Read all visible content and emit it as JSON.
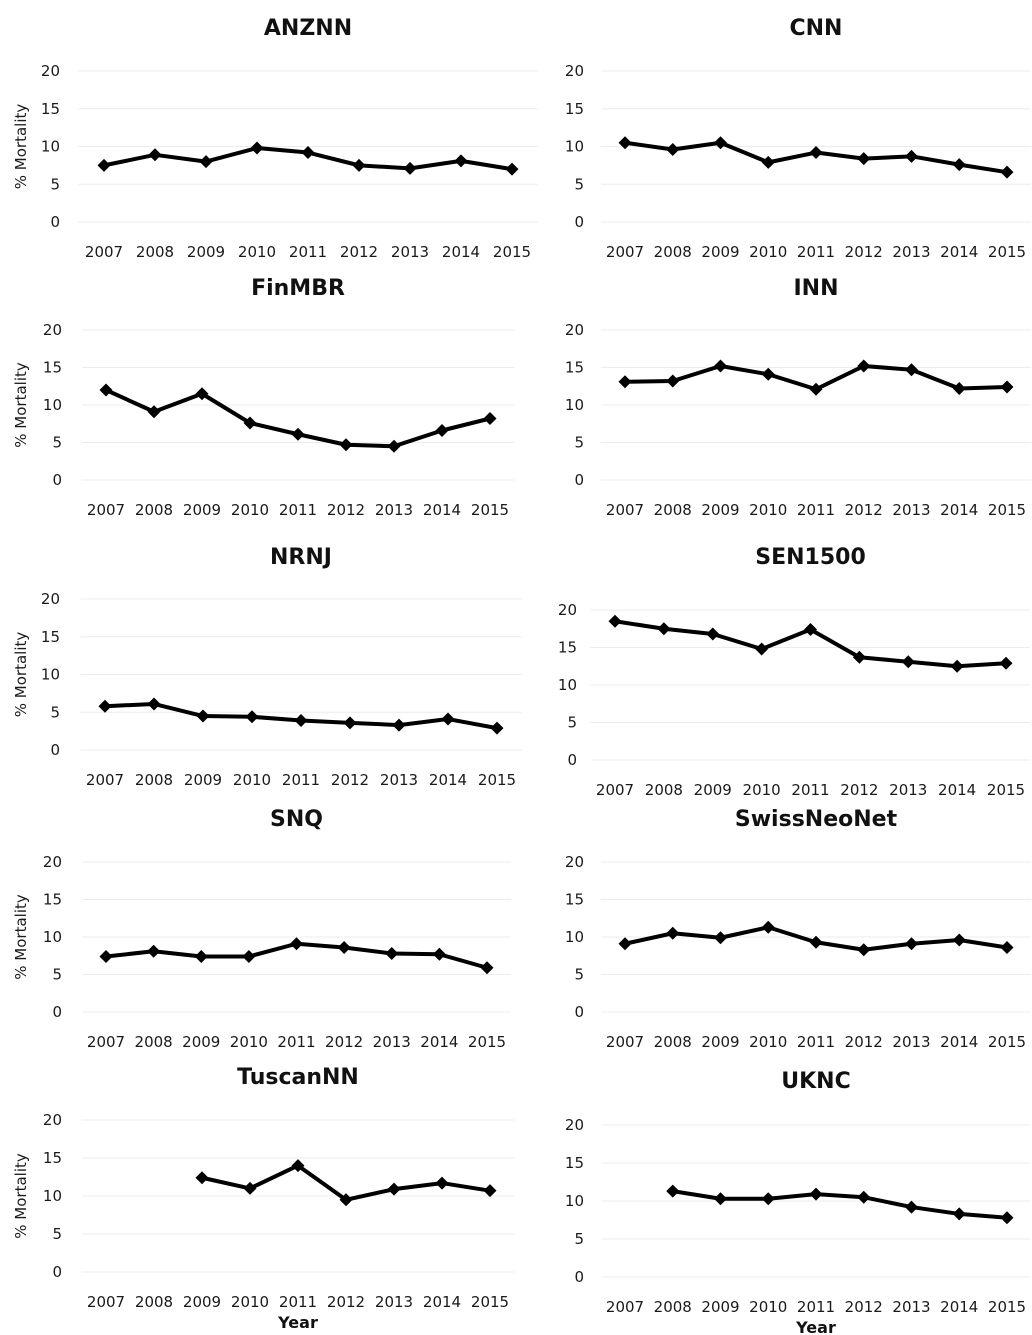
{
  "chart_data": [
    {
      "type": "line",
      "title": "ANZNN",
      "ylabel": "% Mortality",
      "xlabel": "",
      "ylim": [
        0,
        20
      ],
      "yticks": [
        0,
        5,
        10,
        15,
        20
      ],
      "categories": [
        "2007",
        "2008",
        "2009",
        "2010",
        "2011",
        "2012",
        "2013",
        "2014",
        "2015"
      ],
      "values": [
        7.5,
        8.9,
        8.0,
        9.8,
        9.2,
        7.5,
        7.1,
        8.1,
        7.0
      ]
    },
    {
      "type": "line",
      "title": "CNN",
      "ylabel": "",
      "xlabel": "",
      "ylim": [
        0,
        20
      ],
      "yticks": [
        0,
        5,
        10,
        15,
        20
      ],
      "categories": [
        "2007",
        "2008",
        "2009",
        "2010",
        "2011",
        "2012",
        "2013",
        "2014",
        "2015"
      ],
      "values": [
        10.5,
        9.6,
        10.5,
        7.9,
        9.2,
        8.4,
        8.7,
        7.6,
        6.6
      ]
    },
    {
      "type": "line",
      "title": "FinMBR",
      "ylabel": "% Mortality",
      "xlabel": "",
      "ylim": [
        0,
        20
      ],
      "yticks": [
        0,
        5,
        10,
        15,
        20
      ],
      "categories": [
        "2007",
        "2008",
        "2009",
        "2010",
        "2011",
        "2012",
        "2013",
        "2014",
        "2015"
      ],
      "values": [
        12.0,
        9.1,
        11.5,
        7.6,
        6.1,
        4.7,
        4.5,
        6.6,
        8.2
      ]
    },
    {
      "type": "line",
      "title": "INN",
      "ylabel": "",
      "xlabel": "",
      "ylim": [
        0,
        20
      ],
      "yticks": [
        0,
        5,
        10,
        15,
        20
      ],
      "categories": [
        "2007",
        "2008",
        "2009",
        "2010",
        "2011",
        "2012",
        "2013",
        "2014",
        "2015"
      ],
      "values": [
        13.1,
        13.2,
        15.2,
        14.1,
        12.1,
        15.2,
        14.7,
        12.2,
        12.4
      ]
    },
    {
      "type": "line",
      "title": "NRNJ",
      "ylabel": "% Mortality",
      "xlabel": "",
      "ylim": [
        0,
        20
      ],
      "yticks": [
        0,
        5,
        10,
        15,
        20
      ],
      "categories": [
        "2007",
        "2008",
        "2009",
        "2010",
        "2011",
        "2012",
        "2013",
        "2014",
        "2015"
      ],
      "values": [
        5.8,
        6.1,
        4.5,
        4.4,
        3.9,
        3.6,
        3.3,
        4.1,
        2.9
      ]
    },
    {
      "type": "line",
      "title": "SEN1500",
      "ylabel": "",
      "xlabel": "",
      "ylim": [
        0,
        20
      ],
      "yticks": [
        0,
        5,
        10,
        15,
        20
      ],
      "categories": [
        "2007",
        "2008",
        "2009",
        "2010",
        "2011",
        "2012",
        "2013",
        "2014",
        "2015"
      ],
      "values": [
        18.5,
        17.5,
        16.8,
        14.8,
        17.4,
        13.7,
        13.1,
        12.5,
        12.9
      ]
    },
    {
      "type": "line",
      "title": "SNQ",
      "ylabel": "% Mortality",
      "xlabel": "",
      "ylim": [
        0,
        20
      ],
      "yticks": [
        0,
        5,
        10,
        15,
        20
      ],
      "categories": [
        "2007",
        "2008",
        "2009",
        "2010",
        "2011",
        "2012",
        "2013",
        "2014",
        "2015"
      ],
      "values": [
        7.4,
        8.1,
        7.4,
        7.4,
        9.1,
        8.6,
        7.8,
        7.7,
        5.9
      ]
    },
    {
      "type": "line",
      "title": "SwissNeoNet",
      "ylabel": "",
      "xlabel": "",
      "ylim": [
        0,
        20
      ],
      "yticks": [
        0,
        5,
        10,
        15,
        20
      ],
      "categories": [
        "2007",
        "2008",
        "2009",
        "2010",
        "2011",
        "2012",
        "2013",
        "2014",
        "2015"
      ],
      "values": [
        9.1,
        10.5,
        9.9,
        11.3,
        9.3,
        8.3,
        9.1,
        9.6,
        8.6
      ]
    },
    {
      "type": "line",
      "title": "TuscanNN",
      "ylabel": "% Mortality",
      "xlabel": "Year",
      "ylim": [
        0,
        20
      ],
      "yticks": [
        0,
        5,
        10,
        15,
        20
      ],
      "categories": [
        "2007",
        "2008",
        "2009",
        "2010",
        "2011",
        "2012",
        "2013",
        "2014",
        "2015"
      ],
      "values": [
        null,
        null,
        12.4,
        11.0,
        14.0,
        9.5,
        10.9,
        11.7,
        10.7
      ]
    },
    {
      "type": "line",
      "title": "UKNC",
      "ylabel": "",
      "xlabel": "Year",
      "ylim": [
        0,
        20
      ],
      "yticks": [
        0,
        5,
        10,
        15,
        20
      ],
      "categories": [
        "2007",
        "2008",
        "2009",
        "2010",
        "2011",
        "2012",
        "2013",
        "2014",
        "2015"
      ],
      "values": [
        null,
        11.3,
        10.3,
        10.3,
        10.9,
        10.5,
        9.2,
        8.3,
        7.8
      ]
    }
  ]
}
